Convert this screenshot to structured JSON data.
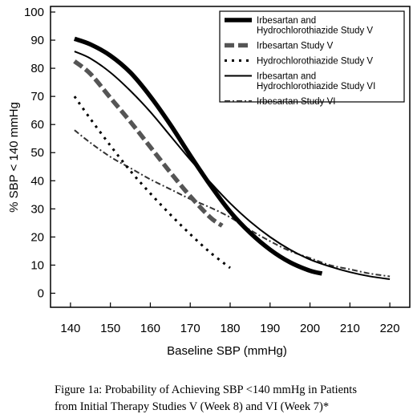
{
  "chart_data": {
    "type": "line",
    "title": "",
    "xlabel": "Baseline SBP (mmHg)",
    "ylabel": "% SBP < 140 mmHg",
    "xlim": [
      135,
      225
    ],
    "ylim": [
      -5,
      102
    ],
    "xticks": [
      140,
      150,
      160,
      170,
      180,
      190,
      200,
      210,
      220
    ],
    "yticks": [
      0,
      10,
      20,
      30,
      40,
      50,
      60,
      70,
      80,
      90,
      100
    ],
    "grid": false,
    "legend_position": "top-right",
    "series": [
      {
        "name": "Irbesartan and Hydrochlorothiazide Study V",
        "legend_lines": [
          "Irbesartan and",
          "Hydrochlorothiazide Study V"
        ],
        "style": "thick-solid",
        "x": [
          141,
          145,
          150,
          155,
          160,
          165,
          170,
          175,
          180,
          185,
          190,
          195,
          200,
          203
        ],
        "y": [
          90.5,
          88.5,
          84.5,
          78.5,
          70,
          60,
          49,
          38.5,
          29,
          21.5,
          15.5,
          11,
          8,
          7
        ]
      },
      {
        "name": "Irbesartan Study V",
        "legend_lines": [
          "Irbesartan Study V"
        ],
        "style": "thick-dash",
        "x": [
          141,
          145,
          150,
          155,
          160,
          165,
          170,
          175,
          178
        ],
        "y": [
          82.5,
          78,
          69.5,
          61,
          52,
          43,
          34.5,
          27,
          24
        ]
      },
      {
        "name": "Hydrochlorothiazide Study V",
        "legend_lines": [
          "Hydrochlorothiazide Study V"
        ],
        "style": "dotted",
        "x": [
          141,
          145,
          150,
          155,
          160,
          165,
          170,
          175,
          180
        ],
        "y": [
          70,
          62,
          52.5,
          43.5,
          35.5,
          28,
          21,
          14.5,
          9
        ]
      },
      {
        "name": "Irbesartan and Hydrochlorothiazide Study VI",
        "legend_lines": [
          "Irbesartan and",
          "Hydrochlorothiazide Study VI"
        ],
        "style": "thin-solid",
        "x": [
          141,
          145,
          150,
          155,
          160,
          165,
          170,
          175,
          180,
          185,
          190,
          195,
          200,
          205,
          210,
          215,
          220
        ],
        "y": [
          86,
          83.5,
          78.5,
          72,
          64.5,
          56,
          47.5,
          39.5,
          32,
          25.5,
          20,
          15.5,
          12,
          9.5,
          7.5,
          6,
          5
        ]
      },
      {
        "name": "Irbesartan Study VI",
        "legend_lines": [
          "Irbesartan Study VI"
        ],
        "style": "dash-dot",
        "x": [
          141,
          145,
          150,
          155,
          160,
          165,
          170,
          175,
          180,
          185,
          190,
          195,
          200,
          205,
          210,
          215,
          220
        ],
        "y": [
          58,
          53.5,
          48.5,
          44.5,
          40.5,
          37,
          33.5,
          30.5,
          27,
          22.5,
          18.5,
          15,
          12.5,
          10,
          8.5,
          7,
          6
        ]
      }
    ]
  },
  "caption": {
    "line1": "Figure 1a: Probability of Achieving SBP <140 mmHg in Patients",
    "line2": "from Initial Therapy Studies V (Week 8) and VI (Week 7)*"
  }
}
